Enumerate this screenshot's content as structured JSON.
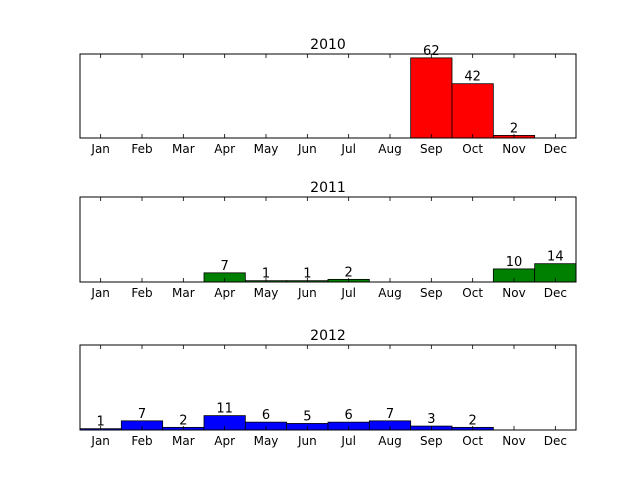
{
  "chart_data": [
    {
      "type": "bar",
      "title": "2010",
      "color": "#ff0000",
      "categories": [
        "Jan",
        "Feb",
        "Mar",
        "Apr",
        "May",
        "Jun",
        "Jul",
        "Aug",
        "Sep",
        "Oct",
        "Nov",
        "Dec"
      ],
      "values": [
        0,
        0,
        0,
        0,
        0,
        0,
        0,
        0,
        62,
        42,
        2,
        0
      ],
      "labels": [
        "",
        "",
        "",
        "",
        "",
        "",
        "",
        "",
        "62",
        "42",
        "2",
        ""
      ],
      "ylim": [
        0,
        65
      ],
      "grid": false
    },
    {
      "type": "bar",
      "title": "2011",
      "color": "#008000",
      "categories": [
        "Jan",
        "Feb",
        "Mar",
        "Apr",
        "May",
        "Jun",
        "Jul",
        "Aug",
        "Sep",
        "Oct",
        "Nov",
        "Dec"
      ],
      "values": [
        0,
        0,
        0,
        7,
        1,
        1,
        2,
        0,
        0,
        0,
        10,
        14
      ],
      "labels": [
        "",
        "",
        "",
        "7",
        "1",
        "1",
        "2",
        "",
        "",
        "",
        "10",
        "14"
      ],
      "ylim": [
        0,
        65
      ],
      "grid": false
    },
    {
      "type": "bar",
      "title": "2012",
      "color": "#0000ff",
      "categories": [
        "Jan",
        "Feb",
        "Mar",
        "Apr",
        "May",
        "Jun",
        "Jul",
        "Aug",
        "Sep",
        "Oct",
        "Nov",
        "Dec"
      ],
      "values": [
        1,
        7,
        2,
        11,
        6,
        5,
        6,
        7,
        3,
        2,
        0,
        0
      ],
      "labels": [
        "1",
        "7",
        "2",
        "11",
        "6",
        "5",
        "6",
        "7",
        "3",
        "2",
        "",
        ""
      ],
      "ylim": [
        0,
        65
      ],
      "grid": false
    }
  ]
}
